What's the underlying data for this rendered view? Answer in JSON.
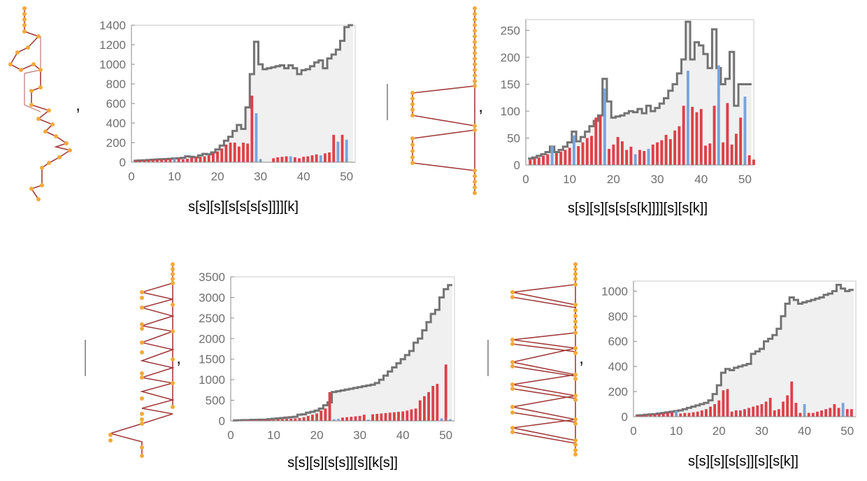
{
  "separators": [
    ",",
    ",",
    ",",
    ","
  ],
  "colors": {
    "red": "#dd4048",
    "blue": "#7aa4dd",
    "envelope": "#737373",
    "fill": "#f0f0f0",
    "axis": "#8a8a8a",
    "node": "#f4a93a",
    "edge": "#a23b3b"
  },
  "chart_data": [
    {
      "type": "bar",
      "xlabel": "s[s][s][s[s[s[s]]]][k]",
      "xlim": [
        0,
        52
      ],
      "ylim": [
        0,
        1400
      ],
      "xticks": [
        0,
        10,
        20,
        30,
        40,
        50
      ],
      "yticks": [
        0,
        200,
        400,
        600,
        800,
        1000,
        1200,
        1400
      ],
      "envelope": [
        15,
        18,
        20,
        22,
        25,
        28,
        30,
        32,
        35,
        38,
        40,
        45,
        60,
        55,
        50,
        70,
        85,
        80,
        100,
        130,
        170,
        220,
        260,
        320,
        380,
        340,
        560,
        900,
        1230,
        1000,
        950,
        960,
        970,
        980,
        990,
        960,
        990,
        960,
        900,
        940,
        950,
        980,
        1020,
        1040,
        960,
        1060,
        1100,
        1150,
        1240,
        1380,
        1400
      ],
      "red_bars": [
        [
          1,
          15
        ],
        [
          2,
          18
        ],
        [
          3,
          20
        ],
        [
          4,
          22
        ],
        [
          5,
          25
        ],
        [
          6,
          28
        ],
        [
          7,
          30
        ],
        [
          8,
          32
        ],
        [
          9,
          35
        ],
        [
          11,
          40
        ],
        [
          12,
          30
        ],
        [
          13,
          35
        ],
        [
          14,
          45
        ],
        [
          15,
          50
        ],
        [
          16,
          55
        ],
        [
          17,
          60
        ],
        [
          18,
          70
        ],
        [
          19,
          90
        ],
        [
          20,
          110
        ],
        [
          21,
          140
        ],
        [
          22,
          180
        ],
        [
          23,
          200
        ],
        [
          24,
          200
        ],
        [
          25,
          160
        ],
        [
          26,
          200
        ],
        [
          27,
          190
        ],
        [
          28,
          680
        ],
        [
          33,
          40
        ],
        [
          34,
          50
        ],
        [
          35,
          55
        ],
        [
          36,
          60
        ],
        [
          38,
          50
        ],
        [
          39,
          40
        ],
        [
          40,
          55
        ],
        [
          41,
          60
        ],
        [
          42,
          70
        ],
        [
          43,
          80
        ],
        [
          45,
          90
        ],
        [
          46,
          100
        ],
        [
          47,
          280
        ],
        [
          49,
          280
        ]
      ],
      "blue_bars": [
        [
          10,
          38
        ],
        [
          29,
          500
        ],
        [
          30,
          30
        ],
        [
          37,
          60
        ],
        [
          44,
          70
        ],
        [
          48,
          210
        ],
        [
          50,
          230
        ]
      ]
    },
    {
      "type": "bar",
      "xlabel": "s[s][s][s[s[s[k]]]][s][s[k]]",
      "xlim": [
        0,
        52
      ],
      "ylim": [
        0,
        270
      ],
      "xticks": [
        0,
        10,
        20,
        30,
        40,
        50
      ],
      "yticks": [
        0,
        50,
        100,
        150,
        200,
        250
      ],
      "envelope": [
        12,
        14,
        17,
        20,
        24,
        34,
        24,
        28,
        34,
        42,
        62,
        44,
        52,
        62,
        72,
        82,
        92,
        160,
        118,
        88,
        90,
        92,
        96,
        100,
        98,
        104,
        96,
        110,
        100,
        106,
        114,
        124,
        138,
        150,
        170,
        196,
        266,
        196,
        228,
        222,
        206,
        180,
        252,
        180,
        150,
        160,
        210,
        110,
        150,
        150,
        150
      ],
      "red_bars": [
        [
          1,
          10
        ],
        [
          2,
          12
        ],
        [
          3,
          14
        ],
        [
          4,
          17
        ],
        [
          5,
          20
        ],
        [
          7,
          22
        ],
        [
          8,
          25
        ],
        [
          9,
          28
        ],
        [
          10,
          32
        ],
        [
          12,
          35
        ],
        [
          13,
          42
        ],
        [
          14,
          50
        ],
        [
          15,
          54
        ],
        [
          16,
          88
        ],
        [
          17,
          92
        ],
        [
          19,
          30
        ],
        [
          20,
          38
        ],
        [
          21,
          52
        ],
        [
          22,
          44
        ],
        [
          23,
          28
        ],
        [
          24,
          34
        ],
        [
          26,
          28
        ],
        [
          27,
          26
        ],
        [
          29,
          38
        ],
        [
          30,
          42
        ],
        [
          31,
          46
        ],
        [
          32,
          56
        ],
        [
          33,
          48
        ],
        [
          34,
          64
        ],
        [
          35,
          72
        ],
        [
          36,
          110
        ],
        [
          38,
          108
        ],
        [
          39,
          98
        ],
        [
          40,
          104
        ],
        [
          41,
          36
        ],
        [
          42,
          40
        ],
        [
          43,
          110
        ],
        [
          45,
          42
        ],
        [
          46,
          115
        ],
        [
          47,
          38
        ],
        [
          48,
          58
        ],
        [
          49,
          88
        ],
        [
          51,
          18
        ],
        [
          52,
          10
        ]
      ],
      "blue_bars": [
        [
          6,
          35
        ],
        [
          11,
          55
        ],
        [
          18,
          142
        ],
        [
          25,
          20
        ],
        [
          28,
          30
        ],
        [
          37,
          175
        ],
        [
          44,
          185
        ],
        [
          50,
          127
        ]
      ]
    },
    {
      "type": "bar",
      "xlabel": "s[s][s][s[s]][s][k[s]]",
      "xlim": [
        0,
        52
      ],
      "ylim": [
        0,
        3500
      ],
      "xticks": [
        0,
        10,
        20,
        30,
        40,
        50
      ],
      "yticks": [
        0,
        500,
        1000,
        1500,
        2000,
        2500,
        3000,
        3500
      ],
      "envelope": [
        10,
        15,
        20,
        20,
        25,
        25,
        30,
        30,
        40,
        50,
        60,
        70,
        80,
        90,
        100,
        150,
        160,
        200,
        220,
        250,
        300,
        380,
        450,
        700,
        720,
        740,
        760,
        780,
        800,
        820,
        840,
        860,
        880,
        920,
        1000,
        1100,
        1200,
        1300,
        1400,
        1500,
        1600,
        1700,
        1900,
        2000,
        2200,
        2400,
        2600,
        2700,
        3000,
        3200,
        3300
      ],
      "red_bars": [
        [
          1,
          10
        ],
        [
          2,
          12
        ],
        [
          3,
          15
        ],
        [
          4,
          18
        ],
        [
          5,
          20
        ],
        [
          6,
          22
        ],
        [
          7,
          25
        ],
        [
          8,
          28
        ],
        [
          9,
          30
        ],
        [
          10,
          35
        ],
        [
          11,
          40
        ],
        [
          12,
          45
        ],
        [
          13,
          50
        ],
        [
          14,
          55
        ],
        [
          15,
          60
        ],
        [
          16,
          70
        ],
        [
          17,
          90
        ],
        [
          18,
          120
        ],
        [
          19,
          150
        ],
        [
          20,
          180
        ],
        [
          21,
          250
        ],
        [
          22,
          300
        ],
        [
          23,
          700
        ],
        [
          26,
          80
        ],
        [
          27,
          90
        ],
        [
          28,
          100
        ],
        [
          29,
          110
        ],
        [
          30,
          120
        ],
        [
          31,
          150
        ],
        [
          33,
          160
        ],
        [
          34,
          170
        ],
        [
          35,
          180
        ],
        [
          36,
          190
        ],
        [
          37,
          200
        ],
        [
          38,
          210
        ],
        [
          39,
          220
        ],
        [
          40,
          230
        ],
        [
          41,
          250
        ],
        [
          42,
          280
        ],
        [
          43,
          300
        ],
        [
          44,
          500
        ],
        [
          45,
          600
        ],
        [
          46,
          700
        ],
        [
          47,
          850
        ],
        [
          48,
          900
        ],
        [
          50,
          1370
        ]
      ],
      "blue_bars": [
        [
          24,
          40
        ],
        [
          25,
          50
        ],
        [
          32,
          30
        ],
        [
          49,
          60
        ],
        [
          51,
          40
        ]
      ]
    },
    {
      "type": "bar",
      "xlabel": "s[s][s][s[s]][s][s[k]]",
      "xlim": [
        0,
        52
      ],
      "ylim": [
        0,
        1080
      ],
      "xticks": [
        0,
        10,
        20,
        30,
        40,
        50
      ],
      "yticks": [
        0,
        200,
        400,
        600,
        800,
        1000
      ],
      "envelope": [
        10,
        12,
        15,
        18,
        20,
        25,
        30,
        35,
        40,
        45,
        50,
        60,
        70,
        80,
        90,
        100,
        110,
        130,
        180,
        250,
        350,
        380,
        370,
        390,
        400,
        410,
        420,
        500,
        520,
        540,
        600,
        620,
        650,
        700,
        800,
        900,
        950,
        930,
        900,
        910,
        920,
        930,
        940,
        950,
        970,
        980,
        1000,
        1050,
        1020,
        1000,
        1010
      ],
      "red_bars": [
        [
          1,
          10
        ],
        [
          2,
          10
        ],
        [
          3,
          12
        ],
        [
          4,
          15
        ],
        [
          5,
          18
        ],
        [
          6,
          20
        ],
        [
          7,
          25
        ],
        [
          8,
          30
        ],
        [
          9,
          35
        ],
        [
          11,
          25
        ],
        [
          12,
          30
        ],
        [
          13,
          30
        ],
        [
          14,
          35
        ],
        [
          15,
          40
        ],
        [
          16,
          50
        ],
        [
          17,
          60
        ],
        [
          18,
          80
        ],
        [
          19,
          100
        ],
        [
          20,
          130
        ],
        [
          21,
          210
        ],
        [
          22,
          220
        ],
        [
          23,
          40
        ],
        [
          24,
          50
        ],
        [
          25,
          50
        ],
        [
          26,
          60
        ],
        [
          27,
          70
        ],
        [
          28,
          80
        ],
        [
          29,
          90
        ],
        [
          30,
          100
        ],
        [
          31,
          120
        ],
        [
          32,
          150
        ],
        [
          33,
          50
        ],
        [
          34,
          60
        ],
        [
          35,
          120
        ],
        [
          36,
          170
        ],
        [
          37,
          280
        ],
        [
          38,
          110
        ],
        [
          39,
          30
        ],
        [
          41,
          30
        ],
        [
          42,
          30
        ],
        [
          43,
          40
        ],
        [
          44,
          50
        ],
        [
          45,
          60
        ],
        [
          46,
          70
        ],
        [
          47,
          100
        ],
        [
          48,
          70
        ],
        [
          50,
          60
        ],
        [
          51,
          60
        ]
      ],
      "blue_bars": [
        [
          10,
          45
        ],
        [
          40,
          100
        ],
        [
          49,
          110
        ]
      ]
    }
  ]
}
